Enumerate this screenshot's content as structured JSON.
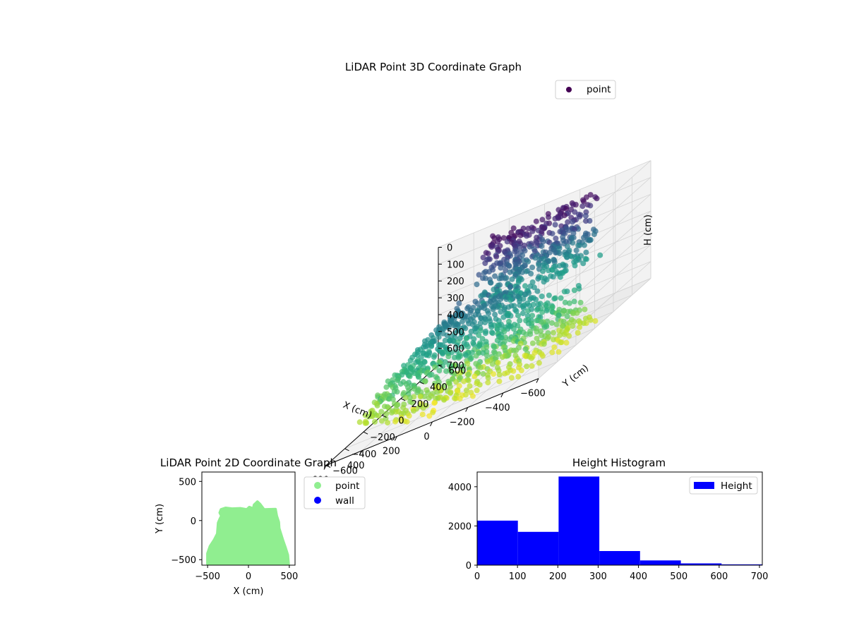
{
  "chart_data": [
    {
      "type": "scatter",
      "projection": "3d",
      "title": "LiDAR Point 3D Coordinate Graph",
      "xlabel": "X (cm)",
      "ylabel": "Y (cm)",
      "zlabel": "H (cm)",
      "xlim": [
        -600,
        600
      ],
      "ylim": [
        -600,
        600
      ],
      "zlim": [
        700,
        0
      ],
      "z_inverted": true,
      "x_ticks": [
        "−600",
        "−400",
        "−200",
        "0",
        "200",
        "400",
        "600"
      ],
      "y_ticks": [
        "−600",
        "−400",
        "−200",
        "0",
        "200",
        "400",
        "600"
      ],
      "z_ticks": [
        "0",
        "100",
        "200",
        "300",
        "400",
        "500",
        "600",
        "700"
      ],
      "colormap": "viridis",
      "color_by": "height",
      "grid": true,
      "legend": {
        "position": "top-right",
        "entries": [
          {
            "label": "point",
            "color": "#440154"
          }
        ]
      },
      "series": [
        {
          "name": "point"
        }
      ]
    },
    {
      "type": "scatter",
      "title": "LiDAR Point 2D Coordinate Graph",
      "xlabel": "X (cm)",
      "ylabel": "Y (cm)",
      "xlim": [
        -570,
        570
      ],
      "ylim": [
        -570,
        620
      ],
      "x_ticks": [
        "−500",
        "0",
        "500"
      ],
      "y_ticks": [
        "−500",
        "0",
        "500"
      ],
      "legend": {
        "position": "outside-right",
        "entries": [
          {
            "label": "point",
            "color": "#90ee90"
          },
          {
            "label": "wall",
            "color": "#0000ff"
          }
        ]
      },
      "footprint_outline_cm": [
        [
          -500,
          -555
        ],
        [
          -500,
          -420
        ],
        [
          -470,
          -330
        ],
        [
          -420,
          -250
        ],
        [
          -380,
          -170
        ],
        [
          -370,
          -30
        ],
        [
          -350,
          20
        ],
        [
          -330,
          60
        ],
        [
          -350,
          100
        ],
        [
          -335,
          140
        ],
        [
          -280,
          160
        ],
        [
          -200,
          150
        ],
        [
          -100,
          155
        ],
        [
          -20,
          140
        ],
        [
          10,
          170
        ],
        [
          60,
          150
        ],
        [
          70,
          200
        ],
        [
          90,
          220
        ],
        [
          110,
          240
        ],
        [
          140,
          210
        ],
        [
          190,
          140
        ],
        [
          330,
          145
        ],
        [
          345,
          60
        ],
        [
          370,
          -20
        ],
        [
          375,
          -100
        ],
        [
          420,
          -250
        ],
        [
          450,
          -340
        ],
        [
          480,
          -440
        ],
        [
          490,
          -555
        ]
      ],
      "series": [
        {
          "name": "point"
        },
        {
          "name": "wall"
        }
      ]
    },
    {
      "type": "bar",
      "subtype": "histogram",
      "title": "Height Histogram",
      "bin_edges": [
        0,
        101,
        202,
        303,
        404,
        505,
        606,
        707
      ],
      "values": [
        2270,
        1700,
        4520,
        720,
        240,
        90,
        40
      ],
      "color": "#0000ff",
      "xlim": [
        0,
        707
      ],
      "ylim": [
        0,
        4750
      ],
      "x_ticks": [
        "0",
        "100",
        "200",
        "300",
        "400",
        "500",
        "600",
        "700"
      ],
      "y_ticks": [
        "0",
        "2000",
        "4000"
      ],
      "legend": {
        "position": "top-right",
        "entries": [
          {
            "label": "Height",
            "color": "#0000ff"
          }
        ]
      },
      "series": [
        {
          "name": "Height"
        }
      ]
    }
  ]
}
